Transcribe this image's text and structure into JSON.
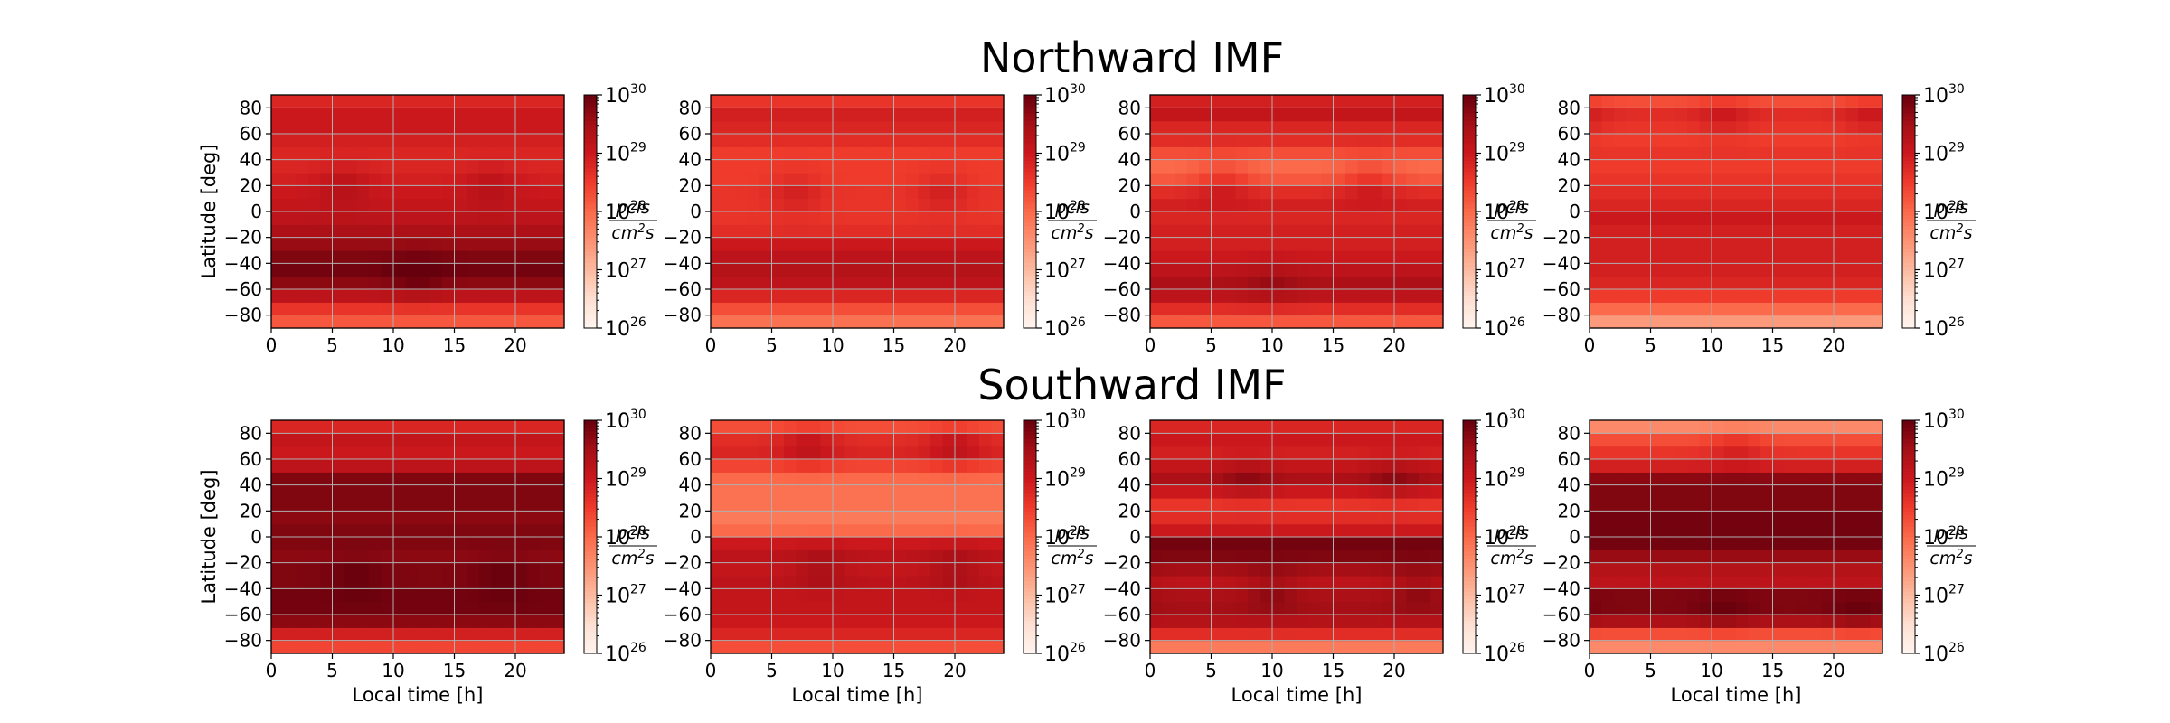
{
  "figure": {
    "titles": [
      "Northward IMF",
      "Southward IMF"
    ],
    "colormap": "Reds",
    "cmap_stops": [
      "#fff5f0",
      "#fee0d2",
      "#fcbba1",
      "#fc9272",
      "#fb6a4a",
      "#ef3b2c",
      "#cb181d",
      "#a50f15",
      "#67000d"
    ],
    "grid_color": "#b0b0b0"
  },
  "chart_data": [
    {
      "type": "heatmap",
      "row_title": "Northward IMF",
      "xlabel": "",
      "ylabel": "Latitude [deg]",
      "xlim": [
        0,
        24
      ],
      "ylim": [
        -90,
        90
      ],
      "xticks": [
        0,
        5,
        10,
        15,
        20
      ],
      "yticks": [
        -80,
        -60,
        -40,
        -20,
        0,
        20,
        40,
        60,
        80
      ],
      "x_bins": 24,
      "lat_bands": 18,
      "band_log10": [
        28.2,
        28.6,
        29.2,
        29.7,
        29.9,
        29.8,
        29.6,
        29.4,
        29.2,
        29.1,
        29.0,
        28.9,
        28.8,
        28.8,
        28.9,
        29.0,
        29.0,
        28.8
      ],
      "features": [
        {
          "lt": 6,
          "lat": 20,
          "amp": 0.3
        },
        {
          "lt": 18,
          "lat": 20,
          "amp": 0.3
        },
        {
          "lt": 12,
          "lat": -50,
          "amp": 0.25
        }
      ],
      "colorbar": {
        "scale": "log",
        "range": [
          1e+26,
          1e+30
        ],
        "ticks": [
          "10^26",
          "10^27",
          "10^28",
          "10^29",
          "10^30"
        ],
        "label": "pcls / cm^2 s"
      }
    },
    {
      "type": "heatmap",
      "row_title": "Northward IMF",
      "xlabel": "",
      "ylabel": "",
      "xlim": [
        0,
        24
      ],
      "ylim": [
        -90,
        90
      ],
      "xticks": [
        0,
        5,
        10,
        15,
        20
      ],
      "yticks": [
        -80,
        -60,
        -40,
        -20,
        0,
        20,
        40,
        60,
        80
      ],
      "x_bins": 24,
      "lat_bands": 18,
      "band_log10": [
        27.9,
        28.3,
        28.8,
        29.2,
        29.3,
        29.2,
        29.0,
        28.7,
        28.6,
        28.6,
        28.6,
        28.5,
        28.5,
        28.5,
        28.7,
        28.8,
        28.9,
        28.6
      ],
      "features": [
        {
          "lt": 7,
          "lat": 15,
          "amp": 0.3
        },
        {
          "lt": 19,
          "lat": 15,
          "amp": 0.3
        }
      ],
      "colorbar": {
        "scale": "log",
        "range": [
          1e+26,
          1e+30
        ],
        "ticks": [
          "10^26",
          "10^27",
          "10^28",
          "10^29",
          "10^30"
        ],
        "label": "pcls / cm^2 s"
      }
    },
    {
      "type": "heatmap",
      "row_title": "Northward IMF",
      "xlabel": "",
      "ylabel": "",
      "xlim": [
        0,
        24
      ],
      "ylim": [
        -90,
        90
      ],
      "xticks": [
        0,
        5,
        10,
        15,
        20
      ],
      "yticks": [
        -80,
        -60,
        -40,
        -20,
        0,
        20,
        40,
        60,
        80
      ],
      "x_bins": 24,
      "lat_bands": 18,
      "band_log10": [
        28.2,
        28.7,
        29.2,
        29.4,
        29.2,
        29.0,
        28.9,
        28.9,
        28.8,
        28.9,
        28.7,
        28.2,
        28.0,
        28.3,
        28.7,
        28.8,
        29.1,
        28.9
      ],
      "features": [
        {
          "lt": 6,
          "lat": 25,
          "amp": 0.4
        },
        {
          "lt": 18,
          "lat": 25,
          "amp": 0.4
        },
        {
          "lt": 10,
          "lat": -55,
          "amp": 0.2
        }
      ],
      "colorbar": {
        "scale": "log",
        "range": [
          1e+26,
          1e+30
        ],
        "ticks": [
          "10^26",
          "10^27",
          "10^28",
          "10^29",
          "10^30"
        ],
        "label": "pcls / cm^2 s"
      }
    },
    {
      "type": "heatmap",
      "row_title": "Northward IMF",
      "xlabel": "",
      "ylabel": "",
      "xlim": [
        0,
        24
      ],
      "ylim": [
        -90,
        90
      ],
      "xticks": [
        0,
        5,
        10,
        15,
        20
      ],
      "yticks": [
        -80,
        -60,
        -40,
        -20,
        0,
        20,
        40,
        60,
        80
      ],
      "x_bins": 24,
      "lat_bands": 18,
      "band_log10": [
        27.4,
        28.0,
        28.5,
        28.8,
        28.9,
        28.9,
        28.9,
        28.9,
        29.0,
        28.8,
        28.7,
        28.6,
        28.5,
        28.6,
        28.5,
        28.6,
        28.7,
        28.3
      ],
      "features": [
        {
          "lt": 11,
          "lat": 75,
          "amp": 0.3
        },
        {
          "lt": 23,
          "lat": 75,
          "amp": 0.3
        }
      ],
      "colorbar": {
        "scale": "log",
        "range": [
          1e+26,
          1e+30
        ],
        "ticks": [
          "10^26",
          "10^27",
          "10^28",
          "10^29",
          "10^30"
        ],
        "label": "pcls / cm^2 s"
      }
    },
    {
      "type": "heatmap",
      "row_title": "Southward IMF",
      "xlabel": "Local time [h]",
      "ylabel": "Latitude [deg]",
      "xlim": [
        0,
        24
      ],
      "ylim": [
        -90,
        90
      ],
      "xticks": [
        0,
        5,
        10,
        15,
        20
      ],
      "yticks": [
        -80,
        -60,
        -40,
        -20,
        0,
        20,
        40,
        60,
        80
      ],
      "x_bins": 24,
      "lat_bands": 18,
      "band_log10": [
        28.4,
        28.9,
        29.7,
        29.9,
        29.9,
        29.8,
        29.8,
        29.7,
        29.8,
        29.8,
        29.7,
        29.8,
        29.8,
        29.8,
        29.2,
        29.0,
        29.1,
        28.8
      ],
      "features": [
        {
          "lt": 7,
          "lat": -30,
          "amp": 0.2
        },
        {
          "lt": 19,
          "lat": -30,
          "amp": 0.2
        }
      ],
      "colorbar": {
        "scale": "log",
        "range": [
          1e+26,
          1e+30
        ],
        "ticks": [
          "10^26",
          "10^27",
          "10^28",
          "10^29",
          "10^30"
        ],
        "label": "pcls / cm^2 s"
      }
    },
    {
      "type": "heatmap",
      "row_title": "Southward IMF",
      "xlabel": "Local time [h]",
      "ylabel": "",
      "xlim": [
        0,
        24
      ],
      "ylim": [
        -90,
        90
      ],
      "xticks": [
        0,
        5,
        10,
        15,
        20
      ],
      "yticks": [
        -80,
        -60,
        -40,
        -20,
        0,
        20,
        40,
        60,
        80
      ],
      "x_bins": 24,
      "lat_bands": 18,
      "band_log10": [
        28.3,
        28.8,
        29.0,
        29.1,
        29.1,
        29.2,
        29.1,
        29.2,
        29.0,
        28.0,
        27.8,
        27.9,
        27.9,
        28.0,
        28.4,
        28.8,
        28.7,
        28.3
      ],
      "features": [
        {
          "lt": 8,
          "lat": 70,
          "amp": 0.4
        },
        {
          "lt": 20,
          "lat": 70,
          "amp": 0.4
        },
        {
          "lt": 9,
          "lat": -25,
          "amp": 0.3
        },
        {
          "lt": 20,
          "lat": -25,
          "amp": 0.3
        }
      ],
      "colorbar": {
        "scale": "log",
        "range": [
          1e+26,
          1e+30
        ],
        "ticks": [
          "10^26",
          "10^27",
          "10^28",
          "10^29",
          "10^30"
        ],
        "label": "pcls / cm^2 s"
      }
    },
    {
      "type": "heatmap",
      "row_title": "Southward IMF",
      "xlabel": "Local time [h]",
      "ylabel": "",
      "xlim": [
        0,
        24
      ],
      "ylim": [
        -90,
        90
      ],
      "xticks": [
        0,
        5,
        10,
        15,
        20
      ],
      "yticks": [
        -80,
        -60,
        -40,
        -20,
        0,
        20,
        40,
        60,
        80
      ],
      "x_bins": 24,
      "lat_bands": 18,
      "band_log10": [
        27.8,
        28.7,
        29.3,
        29.5,
        29.4,
        29.2,
        29.5,
        29.8,
        29.9,
        29.0,
        28.7,
        28.6,
        29.0,
        29.4,
        29.1,
        28.9,
        29.0,
        28.8
      ],
      "features": [
        {
          "lt": 10,
          "lat": -40,
          "amp": 0.3
        },
        {
          "lt": 22,
          "lat": -40,
          "amp": 0.3
        },
        {
          "lt": 8,
          "lat": 45,
          "amp": 0.3
        },
        {
          "lt": 20,
          "lat": 45,
          "amp": 0.3
        }
      ],
      "colorbar": {
        "scale": "log",
        "range": [
          1e+26,
          1e+30
        ],
        "ticks": [
          "10^26",
          "10^27",
          "10^28",
          "10^29",
          "10^30"
        ],
        "label": "pcls / cm^2 s"
      }
    },
    {
      "type": "heatmap",
      "row_title": "Southward IMF",
      "xlabel": "Local time [h]",
      "ylabel": "",
      "xlim": [
        0,
        24
      ],
      "ylim": [
        -90,
        90
      ],
      "xticks": [
        0,
        5,
        10,
        15,
        20
      ],
      "yticks": [
        -80,
        -60,
        -40,
        -20,
        0,
        20,
        40,
        60,
        80
      ],
      "x_bins": 24,
      "lat_bands": 18,
      "band_log10": [
        27.6,
        28.3,
        29.4,
        29.8,
        29.8,
        29.2,
        29.3,
        29.6,
        29.9,
        29.9,
        29.9,
        29.8,
        29.8,
        29.7,
        28.9,
        28.6,
        28.3,
        27.6
      ],
      "features": [
        {
          "lt": 11,
          "lat": -60,
          "amp": 0.2
        },
        {
          "lt": 22,
          "lat": -60,
          "amp": 0.2
        },
        {
          "lt": 12,
          "lat": 70,
          "amp": 0.3
        }
      ],
      "colorbar": {
        "scale": "log",
        "range": [
          1e+26,
          1e+30
        ],
        "ticks": [
          "10^26",
          "10^27",
          "10^28",
          "10^29",
          "10^30"
        ],
        "label": "pcls / cm^2 s"
      }
    }
  ]
}
